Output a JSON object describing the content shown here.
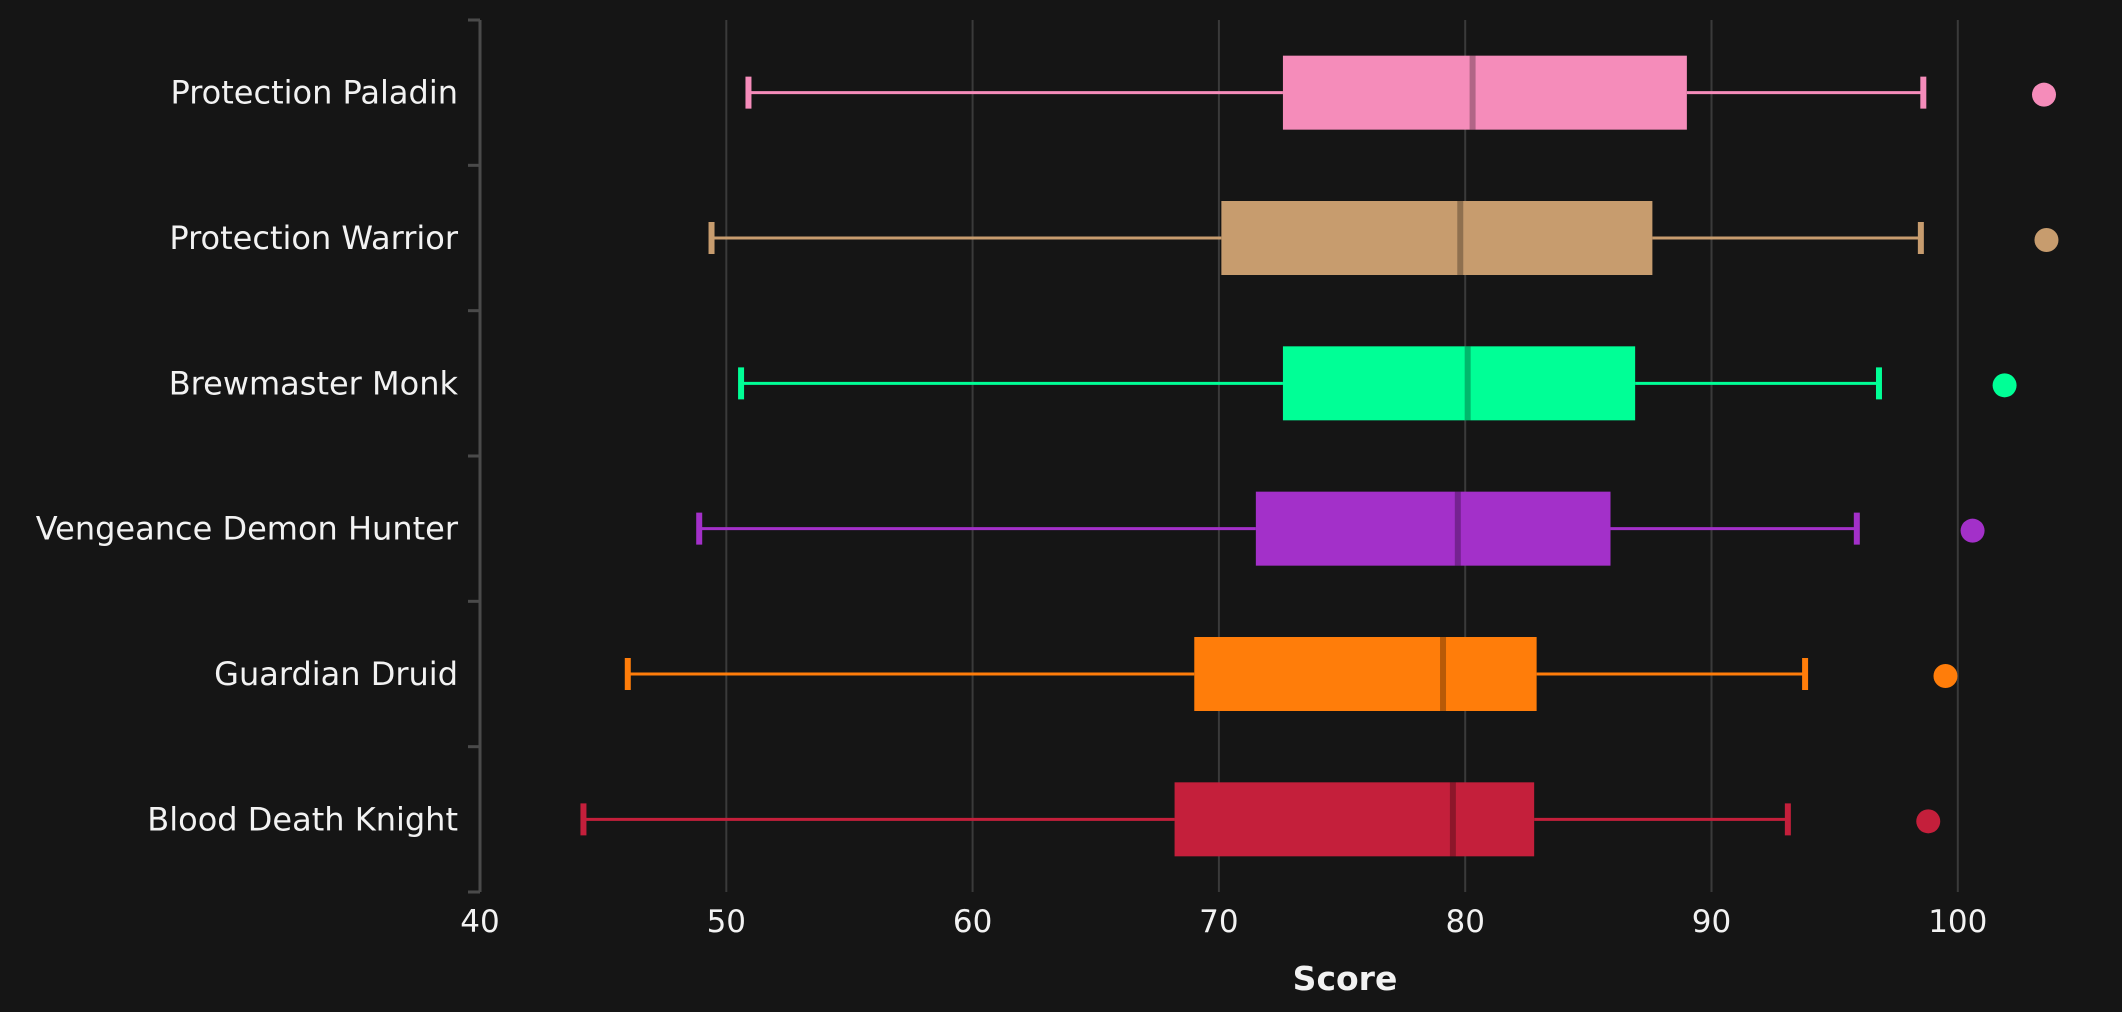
{
  "chart_data": {
    "type": "boxplot",
    "title": "",
    "xlabel": "Score",
    "ylabel": "",
    "xlim": [
      40,
      103
    ],
    "x_ticks": [
      "40",
      "50",
      "60",
      "70",
      "80",
      "90",
      "100"
    ],
    "grid": true,
    "orientation": "horizontal",
    "series": [
      {
        "name": "Protection Paladin",
        "color": "#F58CBA",
        "whisker_low": 50.9,
        "q1": 72.6,
        "median": 80.3,
        "q3": 89.0,
        "whisker_high": 98.6,
        "outlier": 103.5
      },
      {
        "name": "Protection Warrior",
        "color": "#C79C6E",
        "whisker_low": 49.4,
        "q1": 70.1,
        "median": 79.8,
        "q3": 87.6,
        "whisker_high": 98.5,
        "outlier": 103.6
      },
      {
        "name": "Brewmaster Monk",
        "color": "#00FF96",
        "whisker_low": 50.6,
        "q1": 72.6,
        "median": 80.1,
        "q3": 86.9,
        "whisker_high": 96.8,
        "outlier": 101.9
      },
      {
        "name": "Vengeance Demon Hunter",
        "color": "#A330C9",
        "whisker_low": 48.9,
        "q1": 71.5,
        "median": 79.7,
        "q3": 85.9,
        "whisker_high": 95.9,
        "outlier": 100.6
      },
      {
        "name": "Guardian Druid",
        "color": "#FF7D0A",
        "whisker_low": 46.0,
        "q1": 69.0,
        "median": 79.1,
        "q3": 82.9,
        "whisker_high": 93.8,
        "outlier": 99.5
      },
      {
        "name": "Blood Death Knight",
        "color": "#C41F3B",
        "whisker_low": 44.2,
        "q1": 68.2,
        "median": 79.5,
        "q3": 82.8,
        "whisker_high": 93.1,
        "outlier": 98.8
      }
    ]
  }
}
